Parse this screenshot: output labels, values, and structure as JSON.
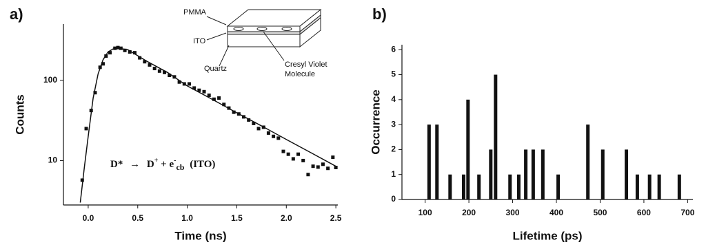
{
  "chart_data": [
    {
      "type": "scatter",
      "panel_label": "a)",
      "ylabel": "Counts",
      "xlabel": "Time (ns)",
      "yscale": "log",
      "color": "#111111",
      "xlim": [
        -0.25,
        2.52
      ],
      "ylim": [
        2.8,
        500
      ],
      "xticks": [
        {
          "value": 0,
          "label": "0.0"
        },
        0.5,
        {
          "value": 1,
          "label": "1.0"
        },
        1.5,
        {
          "value": 2,
          "label": "2.0"
        },
        2.5
      ],
      "yticks": [
        10,
        100
      ],
      "x": [
        -0.06,
        -0.02,
        0.03,
        0.07,
        0.12,
        0.15,
        0.18,
        0.22,
        0.27,
        0.3,
        0.33,
        0.37,
        0.42,
        0.47,
        0.52,
        0.57,
        0.62,
        0.67,
        0.72,
        0.77,
        0.82,
        0.87,
        0.92,
        0.97,
        1.02,
        1.07,
        1.12,
        1.17,
        1.22,
        1.27,
        1.32,
        1.37,
        1.42,
        1.47,
        1.52,
        1.57,
        1.62,
        1.67,
        1.72,
        1.77,
        1.82,
        1.87,
        1.92,
        1.97,
        2.02,
        2.07,
        2.12,
        2.17,
        2.22,
        2.27,
        2.32,
        2.37,
        2.42,
        2.47,
        2.5
      ],
      "values": [
        5.7,
        25,
        42,
        70,
        145,
        160,
        200,
        220,
        250,
        255,
        250,
        235,
        225,
        220,
        190,
        170,
        155,
        140,
        130,
        125,
        115,
        110,
        95,
        90,
        90,
        80,
        75,
        72,
        65,
        58,
        60,
        50,
        45,
        40,
        38,
        35,
        32,
        29,
        25,
        26,
        22,
        20,
        19,
        13,
        12,
        10.5,
        12,
        10,
        6.7,
        8.5,
        8.3,
        9,
        8,
        11,
        8.2
      ],
      "fit": {
        "x": [
          -0.08,
          -0.04,
          0,
          0.05,
          0.1,
          0.15,
          0.2,
          0.25,
          0.3,
          0.4,
          0.6,
          0.8,
          1.0,
          1.25,
          1.5,
          1.75,
          2.0,
          2.25,
          2.5
        ],
        "values": [
          3,
          8,
          20,
          60,
          120,
          180,
          225,
          245,
          250,
          240,
          170,
          125,
          85,
          58,
          39.3,
          27,
          18.3,
          12.5,
          8.5
        ]
      },
      "annotation": [
        "D*",
        "→",
        "D",
        "+",
        "+ e",
        "-",
        "cb",
        "(ITO)"
      ],
      "inset_labels": [
        "PMMA",
        "ITO",
        "Quartz",
        "Cresyl Violet",
        "Molecule"
      ]
    },
    {
      "type": "bar",
      "panel_label": "b)",
      "ylabel": "Occurrence",
      "xlabel": "Lifetime (ps)",
      "color": "#111111",
      "xlim": [
        47,
        712
      ],
      "ylim": [
        0,
        6.2
      ],
      "xticks": [
        100,
        200,
        300,
        400,
        500,
        600,
        700
      ],
      "yticks": [
        0,
        1,
        2,
        3,
        4,
        5,
        6
      ],
      "x": [
        109,
        127,
        157,
        188,
        198,
        223,
        250,
        261,
        294,
        314,
        330,
        347,
        369,
        404,
        472,
        506,
        560,
        585,
        613,
        635,
        681
      ],
      "values": [
        3,
        3,
        1,
        1,
        4,
        1,
        2,
        5,
        1,
        1,
        2,
        2,
        2,
        1,
        3,
        2,
        2,
        1,
        1,
        1,
        1
      ]
    }
  ]
}
